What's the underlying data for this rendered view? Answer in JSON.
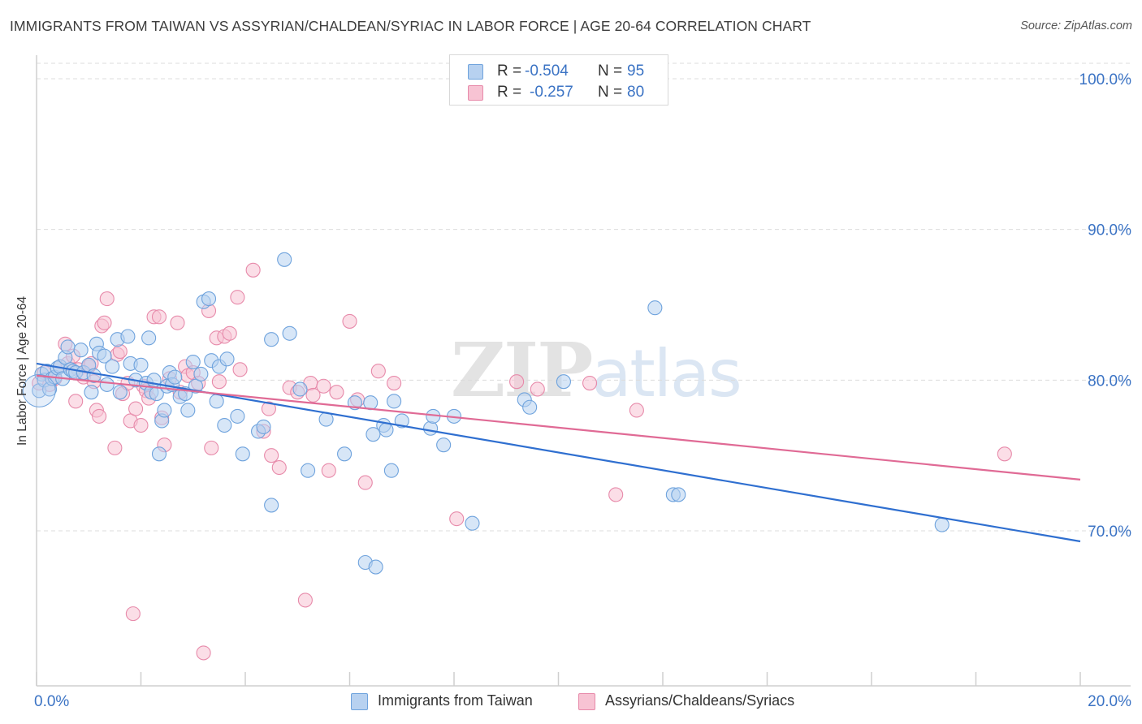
{
  "header": {
    "title": "IMMIGRANTS FROM TAIWAN VS ASSYRIAN/CHALDEAN/SYRIAC IN LABOR FORCE | AGE 20-64 CORRELATION CHART",
    "source": "Source: ZipAtlas.com"
  },
  "watermark": {
    "zip": "ZIP",
    "atlas": "atlas"
  },
  "legend_top": {
    "r_label": "R =",
    "n_label": "N =",
    "rows": [
      {
        "r": "-0.504",
        "n": "95"
      },
      {
        "r": "-0.257",
        "n": "80"
      }
    ]
  },
  "chart_data": {
    "type": "scatter",
    "title": "IMMIGRANTS FROM TAIWAN VS ASSYRIAN/CHALDEAN/SYRIAC IN LABOR FORCE | AGE 20-64 CORRELATION CHART",
    "xlabel": "",
    "ylabel": "In Labor Force | Age 20-64",
    "xlim": [
      0,
      20
    ],
    "ylim": [
      60,
      102
    ],
    "x_tick_labels": [
      "0.0%",
      "20.0%"
    ],
    "y_ticks": [
      70,
      80,
      90,
      100
    ],
    "y_tick_labels": [
      "70.0%",
      "80.0%",
      "90.0%",
      "100.0%"
    ],
    "grid": true,
    "series": [
      {
        "name": "Immigrants from Taiwan",
        "color": "#6fa3dd",
        "fill": "#b7d1f0",
        "line_color": "#2f6fd0",
        "R": -0.504,
        "N": 95,
        "trend": {
          "x": [
            0,
            20
          ],
          "y": [
            81.1,
            69.3
          ]
        },
        "points": [
          [
            0.05,
            79.3
          ],
          [
            0.1,
            80.4
          ],
          [
            0.15,
            80.0
          ],
          [
            0.2,
            80.6
          ],
          [
            0.25,
            79.4
          ],
          [
            0.3,
            80.1
          ],
          [
            0.35,
            80.2
          ],
          [
            0.4,
            80.8
          ],
          [
            0.45,
            80.9
          ],
          [
            0.5,
            80.1
          ],
          [
            0.55,
            81.5
          ],
          [
            0.6,
            82.2
          ],
          [
            0.65,
            80.7
          ],
          [
            0.7,
            80.6
          ],
          [
            0.75,
            80.5
          ],
          [
            0.85,
            82.0
          ],
          [
            0.9,
            80.5
          ],
          [
            1.0,
            81.0
          ],
          [
            1.05,
            79.2
          ],
          [
            1.1,
            80.3
          ],
          [
            1.15,
            82.4
          ],
          [
            1.2,
            81.8
          ],
          [
            1.3,
            81.6
          ],
          [
            1.35,
            79.7
          ],
          [
            1.45,
            80.9
          ],
          [
            1.55,
            82.7
          ],
          [
            1.6,
            79.2
          ],
          [
            1.75,
            82.9
          ],
          [
            1.8,
            81.1
          ],
          [
            1.9,
            80.0
          ],
          [
            2.0,
            81.0
          ],
          [
            2.1,
            79.8
          ],
          [
            2.15,
            82.8
          ],
          [
            2.2,
            79.2
          ],
          [
            2.25,
            80.0
          ],
          [
            2.3,
            79.1
          ],
          [
            2.35,
            75.1
          ],
          [
            2.4,
            77.3
          ],
          [
            2.45,
            78.0
          ],
          [
            2.5,
            79.6
          ],
          [
            2.55,
            80.5
          ],
          [
            2.6,
            79.7
          ],
          [
            2.65,
            80.2
          ],
          [
            2.75,
            78.9
          ],
          [
            2.85,
            79.1
          ],
          [
            2.9,
            78.0
          ],
          [
            3.0,
            81.2
          ],
          [
            3.05,
            79.6
          ],
          [
            3.15,
            80.4
          ],
          [
            3.2,
            85.2
          ],
          [
            3.3,
            85.4
          ],
          [
            3.35,
            81.3
          ],
          [
            3.45,
            78.6
          ],
          [
            3.5,
            80.9
          ],
          [
            3.65,
            81.4
          ],
          [
            3.6,
            77.0
          ],
          [
            3.85,
            77.6
          ],
          [
            3.95,
            75.1
          ],
          [
            4.25,
            76.6
          ],
          [
            4.35,
            76.9
          ],
          [
            4.5,
            82.7
          ],
          [
            4.5,
            71.7
          ],
          [
            4.75,
            88.0
          ],
          [
            4.85,
            83.1
          ],
          [
            5.05,
            79.4
          ],
          [
            5.2,
            74.0
          ],
          [
            5.55,
            77.4
          ],
          [
            5.9,
            75.1
          ],
          [
            6.1,
            78.5
          ],
          [
            6.3,
            67.9
          ],
          [
            6.4,
            78.5
          ],
          [
            6.45,
            76.4
          ],
          [
            6.5,
            67.6
          ],
          [
            6.65,
            77.0
          ],
          [
            6.7,
            76.7
          ],
          [
            6.8,
            74.0
          ],
          [
            6.85,
            78.6
          ],
          [
            7.0,
            77.3
          ],
          [
            7.55,
            76.8
          ],
          [
            7.6,
            77.6
          ],
          [
            7.8,
            75.7
          ],
          [
            8.0,
            77.6
          ],
          [
            8.35,
            70.5
          ],
          [
            9.35,
            78.7
          ],
          [
            9.45,
            78.2
          ],
          [
            10.1,
            79.9
          ],
          [
            11.85,
            84.8
          ],
          [
            12.2,
            72.4
          ],
          [
            12.3,
            72.4
          ],
          [
            17.35,
            70.4
          ]
        ]
      },
      {
        "name": "Assyrians/Chaldeans/Syriacs",
        "color": "#e78aaa",
        "fill": "#f7c3d3",
        "line_color": "#e06a95",
        "R": -0.257,
        "N": 80,
        "trend": {
          "x": [
            0,
            20
          ],
          "y": [
            80.3,
            73.4
          ]
        },
        "points": [
          [
            0.05,
            79.8
          ],
          [
            0.15,
            80.5
          ],
          [
            0.25,
            79.7
          ],
          [
            0.35,
            80.1
          ],
          [
            0.45,
            80.9
          ],
          [
            0.55,
            82.4
          ],
          [
            0.6,
            81.1
          ],
          [
            0.7,
            81.6
          ],
          [
            0.75,
            78.6
          ],
          [
            0.8,
            80.7
          ],
          [
            0.9,
            80.2
          ],
          [
            1.0,
            80.9
          ],
          [
            1.05,
            81.1
          ],
          [
            1.1,
            79.9
          ],
          [
            1.15,
            78.0
          ],
          [
            1.2,
            77.6
          ],
          [
            1.25,
            83.6
          ],
          [
            1.3,
            83.8
          ],
          [
            1.35,
            85.4
          ],
          [
            1.5,
            75.5
          ],
          [
            1.55,
            81.7
          ],
          [
            1.6,
            81.9
          ],
          [
            1.65,
            79.1
          ],
          [
            1.75,
            79.8
          ],
          [
            1.8,
            77.3
          ],
          [
            1.85,
            64.5
          ],
          [
            1.9,
            78.1
          ],
          [
            2.0,
            77.0
          ],
          [
            2.05,
            79.6
          ],
          [
            2.1,
            79.3
          ],
          [
            2.15,
            78.8
          ],
          [
            2.25,
            84.2
          ],
          [
            2.35,
            84.2
          ],
          [
            2.4,
            77.5
          ],
          [
            2.45,
            75.7
          ],
          [
            2.55,
            80.1
          ],
          [
            2.7,
            83.8
          ],
          [
            2.75,
            79.2
          ],
          [
            2.85,
            80.9
          ],
          [
            2.9,
            80.3
          ],
          [
            3.0,
            80.5
          ],
          [
            3.1,
            79.8
          ],
          [
            3.2,
            61.9
          ],
          [
            3.3,
            84.6
          ],
          [
            3.35,
            75.5
          ],
          [
            3.45,
            82.8
          ],
          [
            3.5,
            79.9
          ],
          [
            3.6,
            82.9
          ],
          [
            3.7,
            83.1
          ],
          [
            3.85,
            85.5
          ],
          [
            3.9,
            80.7
          ],
          [
            4.15,
            87.3
          ],
          [
            4.35,
            76.6
          ],
          [
            4.45,
            78.1
          ],
          [
            4.5,
            75.0
          ],
          [
            4.65,
            74.2
          ],
          [
            4.85,
            79.5
          ],
          [
            5.0,
            79.2
          ],
          [
            5.15,
            65.4
          ],
          [
            5.25,
            79.8
          ],
          [
            5.3,
            79.0
          ],
          [
            5.5,
            79.6
          ],
          [
            5.6,
            74.0
          ],
          [
            5.75,
            79.2
          ],
          [
            6.0,
            83.9
          ],
          [
            6.15,
            78.7
          ],
          [
            6.3,
            73.2
          ],
          [
            6.55,
            80.6
          ],
          [
            6.85,
            79.8
          ],
          [
            8.05,
            70.8
          ],
          [
            9.2,
            79.9
          ],
          [
            9.6,
            79.4
          ],
          [
            10.6,
            79.8
          ],
          [
            11.1,
            72.4
          ],
          [
            11.5,
            78.0
          ],
          [
            18.55,
            75.1
          ]
        ]
      }
    ]
  },
  "legend_bottom": [
    {
      "label": "Immigrants from Taiwan"
    },
    {
      "label": "Assyrians/Chaldeans/Syriacs"
    }
  ]
}
